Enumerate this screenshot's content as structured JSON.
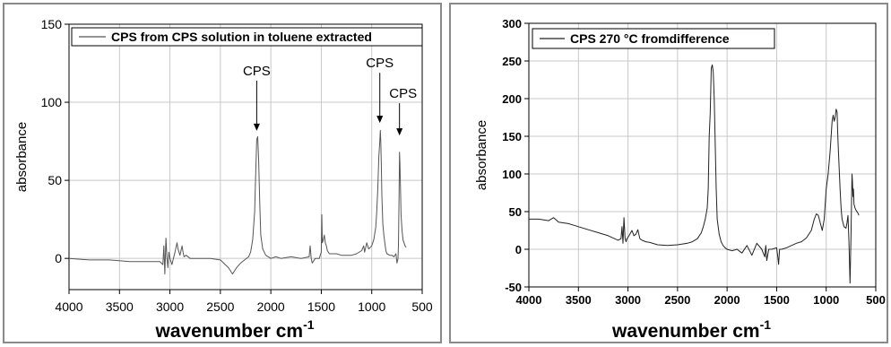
{
  "chart_data": [
    {
      "type": "line",
      "legend": "CPS from CPS solution in toluene extracted",
      "legend_placement": "top",
      "xlabel": "wavenumber",
      "xlabel_unit": "cm",
      "xlabel_unit_exp": "-1",
      "ylabel": "absorbance",
      "xlim": [
        4000,
        500
      ],
      "ylim": [
        -20,
        150
      ],
      "xticks": [
        4000,
        3500,
        3000,
        2500,
        2000,
        1500,
        1000,
        500
      ],
      "yticks": [
        0,
        50,
        100,
        150
      ],
      "grid": true,
      "annotations": [
        {
          "text": "CPS",
          "x": 2140,
          "y": 80
        },
        {
          "text": "CPS",
          "x": 920,
          "y": 85
        },
        {
          "text": "CPS",
          "x": 725,
          "y": 77
        }
      ],
      "series": [
        {
          "name": "CPS from CPS solution in toluene extracted",
          "color": "#555555",
          "x": [
            4000,
            3800,
            3600,
            3400,
            3200,
            3100,
            3070,
            3060,
            3050,
            3040,
            3030,
            3020,
            3010,
            3000,
            2980,
            2950,
            2930,
            2920,
            2900,
            2880,
            2870,
            2860,
            2840,
            2800,
            2700,
            2600,
            2500,
            2420,
            2380,
            2360,
            2340,
            2300,
            2260,
            2220,
            2200,
            2180,
            2160,
            2150,
            2140,
            2130,
            2120,
            2110,
            2100,
            2080,
            2050,
            2000,
            1950,
            1900,
            1800,
            1700,
            1620,
            1610,
            1600,
            1590,
            1560,
            1520,
            1500,
            1495,
            1490,
            1480,
            1470,
            1460,
            1450,
            1440,
            1420,
            1400,
            1350,
            1300,
            1200,
            1150,
            1100,
            1080,
            1070,
            1050,
            1030,
            1000,
            980,
            960,
            950,
            940,
            930,
            920,
            915,
            910,
            905,
            900,
            890,
            880,
            870,
            860,
            850,
            820,
            800,
            780,
            760,
            750,
            740,
            735,
            730,
            725,
            720,
            715,
            710,
            700,
            690,
            680,
            670,
            660
          ],
          "y": [
            0,
            -1,
            -1,
            -2,
            -2,
            -2,
            -4,
            8,
            -10,
            13,
            1,
            -6,
            4,
            0,
            -4,
            4,
            10,
            6,
            2,
            8,
            4,
            1,
            2,
            0,
            0,
            0,
            -1,
            -6,
            -10,
            -8,
            -6,
            -3,
            -1,
            1,
            4,
            12,
            30,
            55,
            76,
            78,
            62,
            35,
            15,
            6,
            2,
            0,
            1,
            0,
            1,
            0,
            1,
            8,
            0,
            -3,
            0,
            0,
            4,
            28,
            10,
            12,
            15,
            10,
            8,
            5,
            3,
            3,
            3,
            2,
            2,
            3,
            5,
            8,
            4,
            10,
            6,
            8,
            12,
            20,
            30,
            45,
            65,
            75,
            82,
            75,
            60,
            40,
            22,
            15,
            10,
            5,
            3,
            2,
            2,
            1,
            3,
            -3,
            0,
            8,
            35,
            68,
            60,
            45,
            28,
            18,
            12,
            10,
            8,
            7
          ]
        }
      ]
    },
    {
      "type": "line",
      "legend": "CPS 270 °C fromdifference",
      "legend_placement": "top-left",
      "xlabel": "wavenumber",
      "xlabel_unit": "cm",
      "xlabel_unit_exp": "-1",
      "ylabel": "absorbance",
      "xlim": [
        4000,
        500
      ],
      "ylim": [
        -50,
        300
      ],
      "xticks": [
        4000,
        3500,
        3000,
        2500,
        2000,
        1500,
        1000,
        500
      ],
      "yticks": [
        -50,
        0,
        50,
        100,
        150,
        200,
        250,
        300
      ],
      "grid": true,
      "series": [
        {
          "name": "CPS 270 °C fromdifference",
          "color": "#222222",
          "x": [
            4000,
            3900,
            3800,
            3750,
            3700,
            3600,
            3500,
            3400,
            3300,
            3200,
            3100,
            3070,
            3060,
            3050,
            3040,
            3030,
            3020,
            3010,
            2990,
            2960,
            2940,
            2920,
            2900,
            2880,
            2860,
            2820,
            2780,
            2700,
            2600,
            2500,
            2400,
            2350,
            2300,
            2260,
            2240,
            2220,
            2200,
            2190,
            2180,
            2170,
            2160,
            2150,
            2140,
            2130,
            2120,
            2110,
            2100,
            2080,
            2060,
            2040,
            2020,
            2000,
            1950,
            1900,
            1850,
            1800,
            1750,
            1700,
            1650,
            1620,
            1610,
            1600,
            1580,
            1550,
            1500,
            1490,
            1480,
            1470,
            1450,
            1400,
            1350,
            1300,
            1250,
            1200,
            1150,
            1120,
            1100,
            1080,
            1060,
            1040,
            1020,
            1000,
            980,
            960,
            950,
            940,
            930,
            920,
            910,
            900,
            890,
            885,
            880,
            870,
            860,
            850,
            840,
            820,
            800,
            790,
            780,
            770,
            760,
            750,
            740,
            735,
            730,
            725,
            720,
            710,
            700,
            690,
            680,
            670
          ],
          "y": [
            40,
            40,
            38,
            42,
            36,
            34,
            30,
            26,
            22,
            18,
            12,
            14,
            30,
            8,
            42,
            15,
            10,
            14,
            18,
            25,
            18,
            20,
            26,
            14,
            12,
            10,
            9,
            6,
            5,
            6,
            8,
            10,
            14,
            22,
            30,
            40,
            55,
            80,
            150,
            180,
            240,
            245,
            235,
            200,
            140,
            80,
            40,
            20,
            10,
            5,
            2,
            0,
            -2,
            0,
            -5,
            5,
            -8,
            8,
            0,
            -10,
            5,
            -15,
            0,
            0,
            2,
            -8,
            -20,
            0,
            0,
            2,
            5,
            8,
            10,
            15,
            25,
            40,
            47,
            45,
            35,
            25,
            40,
            80,
            100,
            130,
            150,
            170,
            178,
            170,
            175,
            186,
            182,
            160,
            140,
            110,
            80,
            55,
            40,
            30,
            28,
            35,
            45,
            10,
            -45,
            20,
            100,
            90,
            70,
            80,
            60,
            55,
            52,
            50,
            48,
            45
          ]
        }
      ]
    }
  ]
}
